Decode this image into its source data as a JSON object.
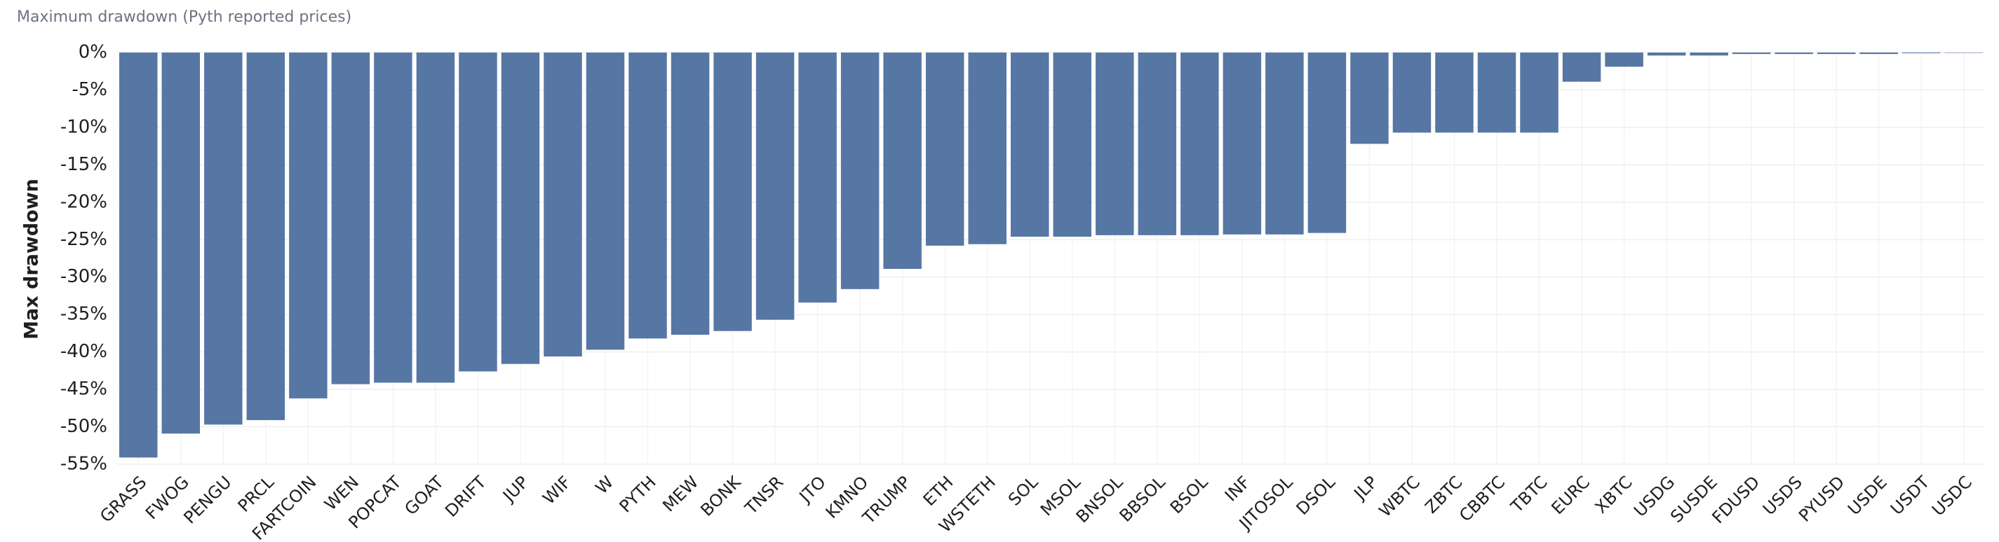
{
  "chart_data": {
    "type": "bar",
    "title": "Maximum drawdown (Pyth reported prices)",
    "y_label": "Max drawdown",
    "categories": [
      "GRASS",
      "FWOG",
      "PENGU",
      "PRCL",
      "FARTCOIN",
      "WEN",
      "POPCAT",
      "GOAT",
      "DRIFT",
      "JUP",
      "WIF",
      "W",
      "PYTH",
      "MEW",
      "BONK",
      "TNSR",
      "JTO",
      "KMNO",
      "TRUMP",
      "ETH",
      "WSTETH",
      "SOL",
      "MSOL",
      "BNSOL",
      "BBSOL",
      "BSOL",
      "INF",
      "JITOSOL",
      "DSOL",
      "JLP",
      "WBTC",
      "ZBTC",
      "CBBTC",
      "TBTC",
      "EURC",
      "XBTC",
      "USDG",
      "SUSDE",
      "FDUSD",
      "USDS",
      "PYUSD",
      "USDE",
      "USDT",
      "USDC"
    ],
    "values": [
      -54.1,
      -50.9,
      -49.7,
      -49.1,
      -46.2,
      -44.3,
      -44.1,
      -44.1,
      -42.6,
      -41.6,
      -40.6,
      -39.7,
      -38.2,
      -37.7,
      -37.2,
      -35.7,
      -33.4,
      -31.6,
      -28.9,
      -25.8,
      -25.6,
      -24.6,
      -24.6,
      -24.4,
      -24.4,
      -24.4,
      -24.3,
      -24.3,
      -24.1,
      -12.2,
      -10.7,
      -10.7,
      -10.7,
      -10.7,
      -3.9,
      -1.9,
      -0.4,
      -0.4,
      -0.2,
      -0.2,
      -0.2,
      -0.2,
      -0.1,
      -0.05
    ],
    "color": "#5677a4",
    "ylim": [
      -55,
      0
    ],
    "yticks": [
      {
        "value": 0,
        "label": "0%"
      },
      {
        "value": -5,
        "label": "-5%"
      },
      {
        "value": -10,
        "label": "-10%"
      },
      {
        "value": -15,
        "label": "-15%"
      },
      {
        "value": -20,
        "label": "-20%"
      },
      {
        "value": -25,
        "label": "-25%"
      },
      {
        "value": -30,
        "label": "-30%"
      },
      {
        "value": -35,
        "label": "-35%"
      },
      {
        "value": -40,
        "label": "-40%"
      },
      {
        "value": -45,
        "label": "-45%"
      },
      {
        "value": -50,
        "label": "-50%"
      },
      {
        "value": -55,
        "label": "-55%"
      }
    ],
    "grid": true
  }
}
